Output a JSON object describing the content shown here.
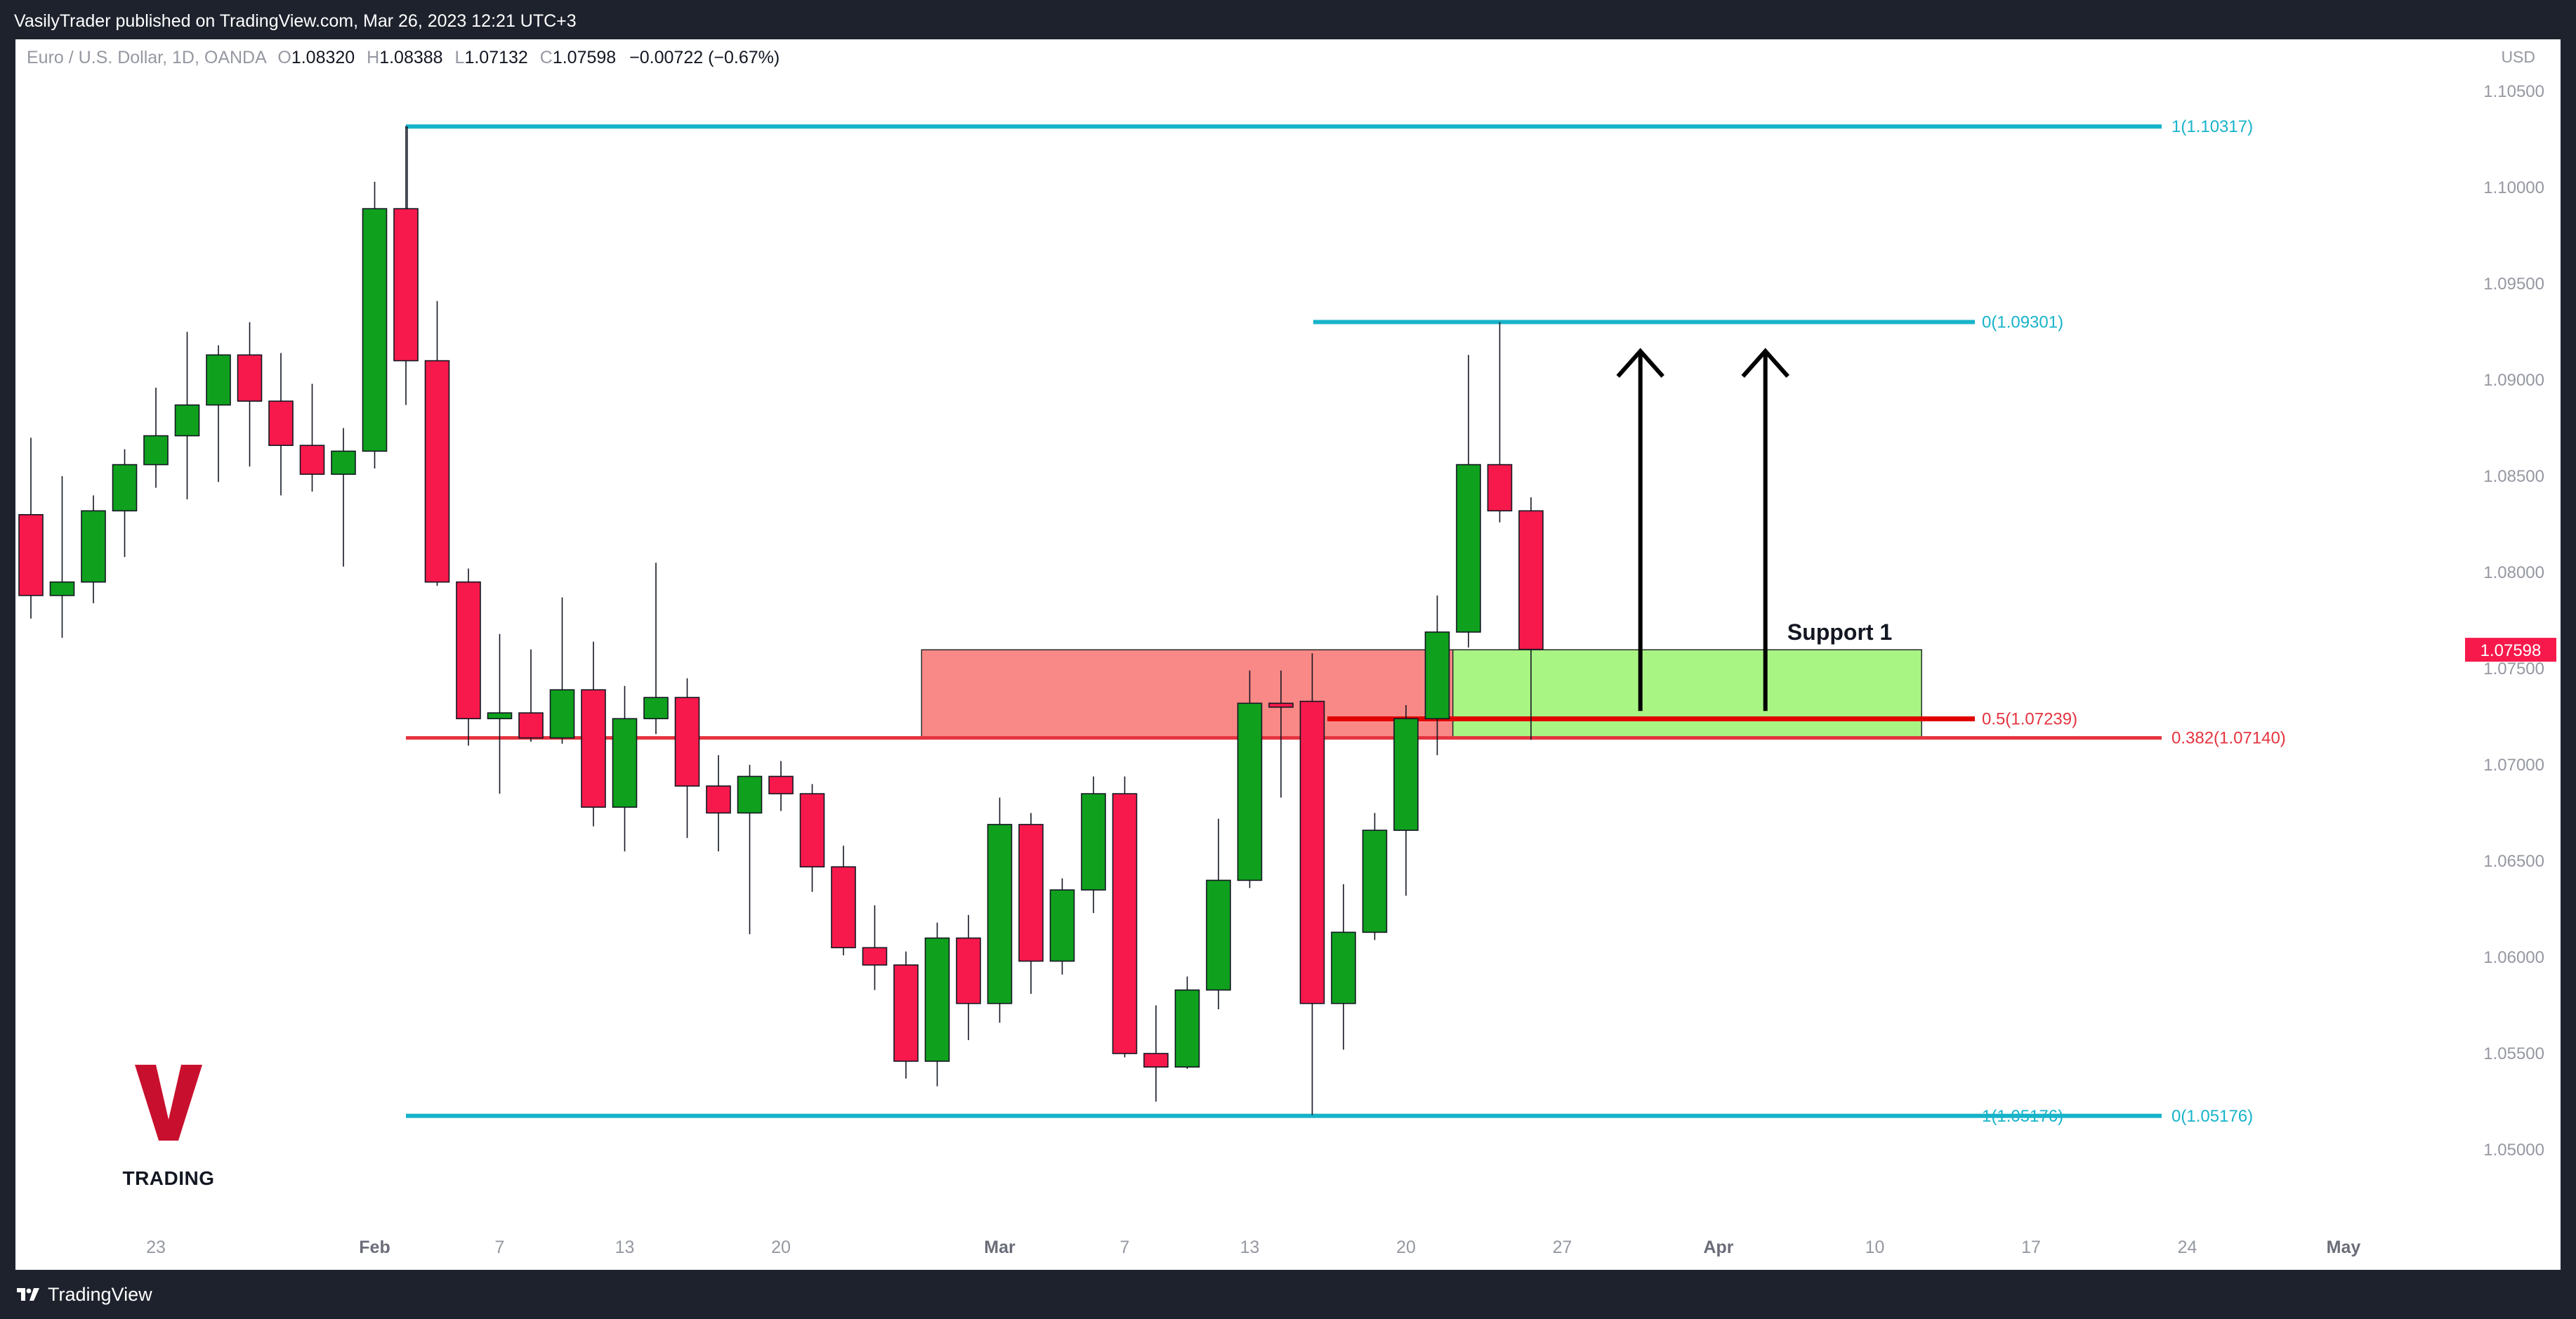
{
  "header": {
    "published": "VasilyTrader published on TradingView.com, Mar 26, 2023 12:21 UTC+3"
  },
  "legend": {
    "symbol": "Euro / U.S. Dollar, 1D, OANDA",
    "open_label": "O",
    "open": "1.08320",
    "high_label": "H",
    "high": "1.08388",
    "low_label": "L",
    "low": "1.07132",
    "close_label": "C",
    "close": "1.07598",
    "change": "−0.00722 (−0.67%)"
  },
  "currency": "USD",
  "logo": {
    "text": "TRADING"
  },
  "footer": {
    "brand": "TradingView"
  },
  "colors": {
    "up": "#0fa01e",
    "down": "#f7194b",
    "fib": "#17b3c9",
    "level": "#e4343f",
    "zone_red": "#f98986",
    "zone_green": "#a8f584"
  },
  "chart_data": {
    "type": "candlestick",
    "title": "",
    "xlabel": "",
    "ylabel": "",
    "ylim": [
      1.0455,
      1.1092
    ],
    "y_ticks": [
      "1.05000",
      "1.05500",
      "1.06000",
      "1.06500",
      "1.07000",
      "1.07500",
      "1.08000",
      "1.08500",
      "1.09000",
      "1.09500",
      "1.10000",
      "1.10500"
    ],
    "x_ticks": [
      {
        "label": "23",
        "bar": 4
      },
      {
        "label": "Feb",
        "bar": 11
      },
      {
        "label": "7",
        "bar": 15
      },
      {
        "label": "13",
        "bar": 19
      },
      {
        "label": "20",
        "bar": 24
      },
      {
        "label": "Mar",
        "bar": 31
      },
      {
        "label": "7",
        "bar": 35
      },
      {
        "label": "13",
        "bar": 39
      },
      {
        "label": "20",
        "bar": 44
      },
      {
        "label": "27",
        "bar": 49
      },
      {
        "label": "Apr",
        "bar": 54
      },
      {
        "label": "10",
        "bar": 59
      },
      {
        "label": "17",
        "bar": 64
      },
      {
        "label": "24",
        "bar": 69
      },
      {
        "label": "May",
        "bar": 74
      }
    ],
    "candles": [
      [
        1.083,
        1.087,
        1.0776,
        1.0788
      ],
      [
        1.0788,
        1.085,
        1.0766,
        1.0795
      ],
      [
        1.0795,
        1.084,
        1.0784,
        1.0832
      ],
      [
        1.0832,
        1.0864,
        1.0808,
        1.0856
      ],
      [
        1.0856,
        1.0896,
        1.0844,
        1.0871
      ],
      [
        1.0871,
        1.0925,
        1.0838,
        1.0887
      ],
      [
        1.0887,
        1.0918,
        1.0847,
        1.0913
      ],
      [
        1.0913,
        1.093,
        1.0855,
        1.0889
      ],
      [
        1.0889,
        1.0914,
        1.084,
        1.0866
      ],
      [
        1.0866,
        1.0898,
        1.0842,
        1.0851
      ],
      [
        1.0851,
        1.0875,
        1.0803,
        1.0863
      ],
      [
        1.0863,
        1.1003,
        1.0854,
        1.0989
      ],
      [
        1.0989,
        1.1032,
        1.0887,
        1.091
      ],
      [
        1.091,
        1.0941,
        1.0793,
        1.0795
      ],
      [
        1.0795,
        1.0802,
        1.071,
        1.0724
      ],
      [
        1.0724,
        1.0768,
        1.0685,
        1.0727
      ],
      [
        1.0727,
        1.076,
        1.0712,
        1.0714
      ],
      [
        1.0714,
        1.0787,
        1.0711,
        1.0739
      ],
      [
        1.0739,
        1.0764,
        1.0668,
        1.0678
      ],
      [
        1.0678,
        1.0741,
        1.0655,
        1.0724
      ],
      [
        1.0724,
        1.0805,
        1.0716,
        1.0735
      ],
      [
        1.0735,
        1.0745,
        1.0662,
        1.0689
      ],
      [
        1.0689,
        1.0705,
        1.0655,
        1.0675
      ],
      [
        1.0675,
        1.07,
        1.0612,
        1.0694
      ],
      [
        1.0694,
        1.0702,
        1.0676,
        1.0685
      ],
      [
        1.0685,
        1.069,
        1.0634,
        1.0647
      ],
      [
        1.0647,
        1.0658,
        1.0601,
        1.0605
      ],
      [
        1.0605,
        1.0627,
        1.0583,
        1.0596
      ],
      [
        1.0596,
        1.0603,
        1.0537,
        1.0546
      ],
      [
        1.0546,
        1.0618,
        1.0533,
        1.061
      ],
      [
        1.061,
        1.0622,
        1.0557,
        1.0576
      ],
      [
        1.0576,
        1.0683,
        1.0566,
        1.0669
      ],
      [
        1.0669,
        1.0675,
        1.0581,
        1.0598
      ],
      [
        1.0598,
        1.0641,
        1.0591,
        1.0635
      ],
      [
        1.0635,
        1.0694,
        1.0623,
        1.0685
      ],
      [
        1.0685,
        1.0694,
        1.0548,
        1.055
      ],
      [
        1.055,
        1.0575,
        1.0525,
        1.0543
      ],
      [
        1.0543,
        1.059,
        1.0542,
        1.0583
      ],
      [
        1.0583,
        1.0672,
        1.0573,
        1.064
      ],
      [
        1.064,
        1.0749,
        1.0636,
        1.0732
      ],
      [
        1.0732,
        1.0749,
        1.0683,
        1.073
      ],
      [
        1.0733,
        1.0758,
        1.0518,
        1.0576
      ],
      [
        1.0576,
        1.0638,
        1.0552,
        1.0613
      ],
      [
        1.0613,
        1.0675,
        1.0609,
        1.0666
      ],
      [
        1.0666,
        1.0731,
        1.0632,
        1.0724
      ],
      [
        1.0724,
        1.0788,
        1.0705,
        1.0769
      ],
      [
        1.0769,
        1.0913,
        1.0761,
        1.0856
      ],
      [
        1.0856,
        1.093,
        1.0826,
        1.0832
      ],
      [
        1.0832,
        1.0839,
        1.0713,
        1.076
      ]
    ],
    "fib_levels": [
      {
        "label": "1(1.10317)",
        "value": 1.10317,
        "color": "#17b3c9"
      },
      {
        "label": "0(1.09301)",
        "value": 1.09301,
        "color": "#17b3c9"
      },
      {
        "label": "0.5(1.07239)",
        "value": 1.07239,
        "color": "#e4343f"
      },
      {
        "label": "0.382(1.07140)",
        "value": 1.0714,
        "color": "#e4343f"
      },
      {
        "label": "0(1.05176)",
        "value": 1.05176,
        "color": "#17b3c9"
      },
      {
        "label": "1(1.05176)",
        "value": 1.05176,
        "color": "#17b3c9"
      }
    ],
    "zones": [
      {
        "label": "",
        "from_bar": 28.5,
        "to_bar": 45.5,
        "low": 1.0714,
        "high": 1.07598,
        "color": "#f98986"
      },
      {
        "label": "Support 1",
        "from_bar": 45.5,
        "to_bar": 60.5,
        "low": 1.0714,
        "high": 1.07598,
        "color": "#a8f584"
      }
    ],
    "arrows": [
      {
        "bar": 51.5,
        "from": 1.0728,
        "to": 1.0915
      },
      {
        "bar": 55.5,
        "from": 1.0728,
        "to": 1.0915
      }
    ],
    "last_price": {
      "label": "1.07598",
      "value": 1.07598
    }
  }
}
